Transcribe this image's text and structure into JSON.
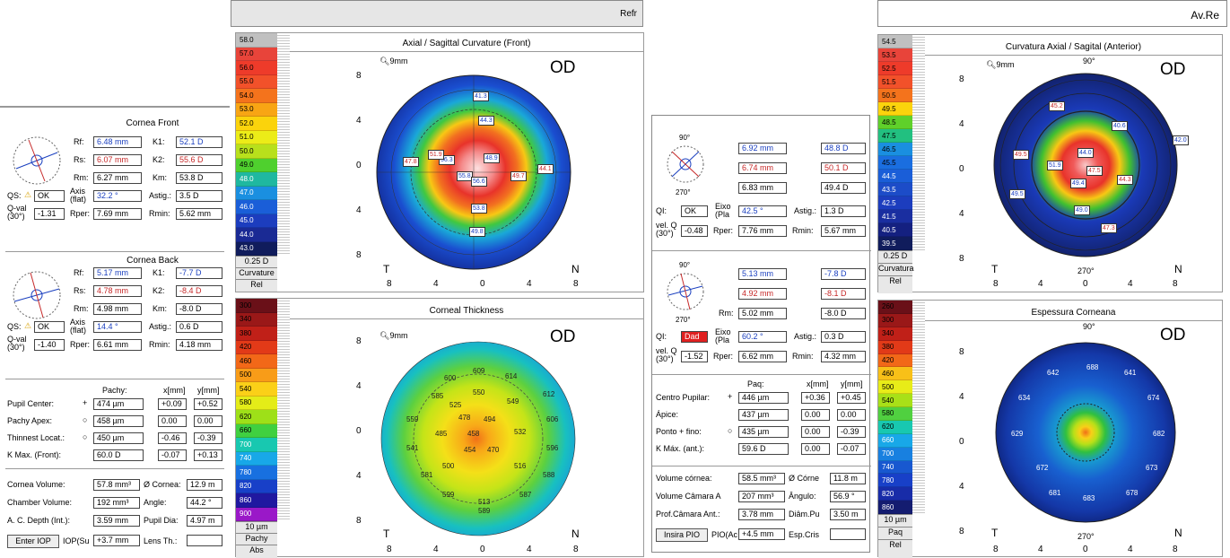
{
  "left": {
    "header_text": "Refr",
    "curvature": {
      "title": "Axial / Sagittal Curvature (Front)",
      "od": "OD",
      "zoom": "9mm",
      "scale": [
        "58.0",
        "57.0",
        "56.0",
        "55.0",
        "54.0",
        "53.0",
        "52.0",
        "51.0",
        "50.0",
        "49.0",
        "48.0",
        "47.0",
        "46.0",
        "45.0",
        "44.0",
        "43.0"
      ],
      "scale_colors": [
        "#c0c0c0",
        "#e8443a",
        "#ee3b2a",
        "#f2512a",
        "#f4731c",
        "#f8a514",
        "#fbd30c",
        "#ecec18",
        "#b8e01c",
        "#4fd02e",
        "#1fb8a0",
        "#1a8fe0",
        "#1a5ed8",
        "#1c3dbe",
        "#1a2a94",
        "#101c5c"
      ],
      "step": "0.25 D",
      "unit": "Curvature",
      "rel": "Rel",
      "labels_blue": [
        "41.3",
        "44.3",
        "48.9",
        "55.8",
        "56.6",
        "53.8",
        "49.8",
        "56.3"
      ],
      "labels_red": [
        "47.8",
        "51.9",
        "49.7",
        "44.1"
      ],
      "t": "T",
      "n": "N",
      "yticks": [
        "8",
        "4",
        "0",
        "4",
        "8"
      ],
      "xticks": [
        "8",
        "4",
        "0",
        "4",
        "8"
      ]
    },
    "thickness": {
      "title": "Corneal Thickness",
      "od": "OD",
      "zoom": "9mm",
      "scale": [
        "300",
        "340",
        "380",
        "420",
        "460",
        "500",
        "540",
        "580",
        "620",
        "660",
        "700",
        "740",
        "780",
        "820",
        "860",
        "900"
      ],
      "scale_colors": [
        "#6a1018",
        "#9a1818",
        "#c02018",
        "#e23a18",
        "#f26818",
        "#f89c18",
        "#fbd018",
        "#e4ec18",
        "#9ee018",
        "#40d040",
        "#18c8b0",
        "#18a8e8",
        "#1870e0",
        "#1840c8",
        "#2018a0",
        "#9a18c8"
      ],
      "step": "10 µm",
      "unit": "Pachy",
      "rel": "Abs",
      "values": [
        "609",
        "614",
        "600",
        "550",
        "549",
        "612",
        "585",
        "525",
        "606",
        "559",
        "478",
        "494",
        "532",
        "541",
        "485",
        "458",
        "596",
        "454",
        "470",
        "500",
        "516",
        "581",
        "588",
        "599",
        "513",
        "587",
        "589"
      ],
      "t": "T",
      "n": "N",
      "yticks": [
        "8",
        "4",
        "0",
        "4",
        "8"
      ],
      "xticks": [
        "8",
        "4",
        "0",
        "4",
        "8"
      ]
    },
    "front": {
      "title": "Cornea Front",
      "rf_l": "Rf:",
      "rf": "6.48 mm",
      "k1_l": "K1:",
      "k1": "52.1 D",
      "rs_l": "Rs:",
      "rs": "6.07 mm",
      "k2_l": "K2:",
      "k2": "55.6 D",
      "rm_l": "Rm:",
      "rm": "6.27 mm",
      "km_l": "Km:",
      "km": "53.8 D",
      "qs_l": "QS:",
      "qs": "OK",
      "axis_l": "Axis (flat)",
      "axis": "32.2 °",
      "astig_l": "Astig.:",
      "astig": "3.5 D",
      "qval_l": "Q-val (30°)",
      "qval": "-1.31",
      "rper_l": "Rper:",
      "rper": "7.69 mm",
      "rmin_l": "Rmin:",
      "rmin": "5.62 mm"
    },
    "back": {
      "title": "Cornea Back",
      "rf_l": "Rf:",
      "rf": "5.17 mm",
      "k1_l": "K1:",
      "k1": "-7.7 D",
      "rs_l": "Rs:",
      "rs": "4.78 mm",
      "k2_l": "K2:",
      "k2": "-8.4 D",
      "rm_l": "Rm:",
      "rm": "4.98 mm",
      "km_l": "Km:",
      "km": "-8.0 D",
      "qs_l": "QS:",
      "qs": "OK",
      "axis_l": "Axis (flat)",
      "axis": "14.4 °",
      "astig_l": "Astig.:",
      "astig": "0.6 D",
      "qval_l": "Q-val (30°)",
      "qval": "-1.40",
      "rper_l": "Rper:",
      "rper": "6.61 mm",
      "rmin_l": "Rmin:",
      "rmin": "4.18 mm"
    },
    "pachy": {
      "col_pachy": "Pachy:",
      "col_x": "x[mm]",
      "col_y": "y[mm]",
      "rows": [
        {
          "label": "Pupil Center:",
          "sym": "+",
          "val": "474 µm",
          "x": "+0.09",
          "y": "+0.52"
        },
        {
          "label": "Pachy Apex:",
          "sym": "○",
          "val": "458 µm",
          "x": "0.00",
          "y": "0.00"
        },
        {
          "label": "Thinnest Locat.:",
          "sym": "○",
          "val": "450 µm",
          "x": "-0.46",
          "y": "-0.39"
        },
        {
          "label": "K Max. (Front):",
          "sym": "",
          "val": "60.0 D",
          "x": "-0.07",
          "y": "+0.13"
        }
      ]
    },
    "volume": {
      "cv_l": "Cornea Volume:",
      "cv": "57.8 mm³",
      "cd_l": "Ø Cornea:",
      "cd": "12.9 m",
      "chv_l": "Chamber Volume:",
      "chv": "192 mm³",
      "ang_l": "Angle:",
      "ang": "44.2 °",
      "acd_l": "A. C. Depth (Int.):",
      "acd": "3.59 mm",
      "pd_l": "Pupil Dia:",
      "pd": "4.97 m",
      "iop_btn": "Enter IOP",
      "iop_l": "IOP(Su",
      "iop": "+3.7 mm",
      "lens_l": "Lens Th.:",
      "lens": ""
    }
  },
  "right": {
    "header_text": "Av.Re",
    "curvature": {
      "title": "Curvatura Axial / Sagital (Anterior)",
      "od": "OD",
      "zoom": "9mm",
      "scale": [
        "54.5",
        "53.5",
        "52.5",
        "51.5",
        "50.5",
        "49.5",
        "48.5",
        "47.5",
        "46.5",
        "45.5",
        "44.5",
        "43.5",
        "42.5",
        "41.5",
        "40.5",
        "39.5"
      ],
      "scale_colors": [
        "#c0c0c0",
        "#e8443a",
        "#ee3b2a",
        "#f2512a",
        "#f4731c",
        "#fbd30c",
        "#5fd02a",
        "#22c080",
        "#1a8fe0",
        "#1a6ee0",
        "#1a5ed8",
        "#1c4cc8",
        "#1c3dbe",
        "#1a2ea0",
        "#142080",
        "#101c5c"
      ],
      "step": "0.25 D",
      "unit": "Curvatura",
      "rel": "Rel",
      "labels_blue": [
        "40.6",
        "42.0",
        "44.0",
        "49.4",
        "49.5",
        "49.0",
        "51.9"
      ],
      "labels_red": [
        "45.2",
        "49.5",
        "47.5",
        "44.3",
        "47.3"
      ],
      "deg_top": "90°",
      "deg_bottom": "270°",
      "t": "T",
      "n": "N",
      "yticks": [
        "8",
        "4",
        "0",
        "4",
        "8"
      ],
      "xticks": [
        "8",
        "4",
        "0",
        "4",
        "8"
      ]
    },
    "thickness": {
      "title": "Espessura Corneana",
      "od": "OD",
      "scale": [
        "260",
        "300",
        "340",
        "380",
        "420",
        "460",
        "500",
        "540",
        "580",
        "620",
        "660",
        "700",
        "740",
        "780",
        "820",
        "860"
      ],
      "scale_colors": [
        "#6a1018",
        "#9a1818",
        "#c02018",
        "#e23a18",
        "#f26818",
        "#f8c018",
        "#e8ec18",
        "#a8e018",
        "#50d040",
        "#18c8b0",
        "#18a8e8",
        "#1880e0",
        "#1858d0",
        "#1840c8",
        "#182ca8",
        "#141c70"
      ],
      "step": "10 µm",
      "unit": "Paq",
      "rel": "Rel",
      "values": [
        "642",
        "688",
        "641",
        "634",
        "674",
        "629",
        "682",
        "672",
        "673",
        "681",
        "683",
        "678"
      ],
      "deg_top": "90°",
      "deg_bottom": "270°",
      "t": "T",
      "n": "N",
      "yticks": [
        "8",
        "4",
        "0",
        "4",
        "8"
      ],
      "xticks": [
        "8",
        "4",
        "0",
        "4",
        "8"
      ]
    },
    "front": {
      "rf": "6.92 mm",
      "k1": "48.8 D",
      "rs": "6.74 mm",
      "k2": "50.1 D",
      "rm": "6.83 mm",
      "km": "49.4 D",
      "qs_l": "QI:",
      "qs": "OK",
      "axis_l": "Eixo (Pla",
      "axis": "42.5 °",
      "astig_l": "Astig.:",
      "astig": "1.3 D",
      "qval_l": "vel. Q (30°)",
      "qval": "-0.48",
      "rper_l": "Rper:",
      "rper": "7.76 mm",
      "rmin_l": "Rmin:",
      "rmin": "5.67 mm"
    },
    "back": {
      "rf": "5.13 mm",
      "k1": "-7.8 D",
      "rs": "4.92 mm",
      "k2": "-8.1 D",
      "rm_l": "Rm:",
      "rm": "5.02 mm",
      "km": "-8.0 D",
      "qs_l": "QI:",
      "qs": "Dad",
      "axis_l": "Eixo (Pla",
      "axis": "60.2 °",
      "astig_l": "Astig.:",
      "astig": "0.3 D",
      "qval_l": "vel. Q (30°)",
      "qval": "-1.52",
      "rper_l": "Rper:",
      "rper": "6.62 mm",
      "rmin_l": "Rmin:",
      "rmin": "4.32 mm"
    },
    "pachy": {
      "col_pachy": "Paq:",
      "col_x": "x[mm]",
      "col_y": "y[mm]",
      "rows": [
        {
          "label": "Centro Pupilar:",
          "sym": "+",
          "val": "446 µm",
          "x": "+0.36",
          "y": "+0.45"
        },
        {
          "label": "Ápice:",
          "sym": "",
          "val": "437 µm",
          "x": "0.00",
          "y": "0.00"
        },
        {
          "label": "Ponto + fino:",
          "sym": "○",
          "val": "435 µm",
          "x": "0.00",
          "y": "-0.39"
        },
        {
          "label": "K Máx. (ant.):",
          "sym": "",
          "val": "59.6 D",
          "x": "0.00",
          "y": "-0.07"
        }
      ]
    },
    "volume": {
      "cv_l": "Volume córnea:",
      "cv": "58.5 mm³",
      "cd_l": "Ø Córne",
      "cd": "11.8 m",
      "chv_l": "Volume Câmara A",
      "chv": "207 mm³",
      "ang_l": "Ângulo:",
      "ang": "56.9 °",
      "acd_l": "Prof.Câmara Ant.:",
      "acd": "3.78 mm",
      "pd_l": "Diâm.Pu",
      "pd": "3.50 m",
      "iop_btn": "Insira PIO",
      "iop_l": "PIO(Ac",
      "iop": "+4.5 mm",
      "lens_l": "Esp.Cris",
      "lens": ""
    }
  }
}
